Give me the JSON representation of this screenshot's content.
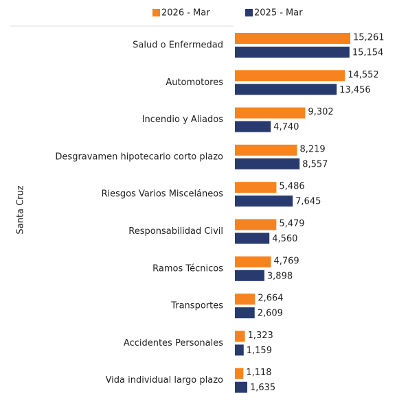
{
  "chart_data": {
    "type": "bar",
    "orientation": "horizontal",
    "y_label": "Santa Cruz",
    "categories": [
      "Salud o Enfermedad",
      "Automotores",
      "Incendio y Aliados",
      "Desgravamen hipotecario corto plazo",
      "Riesgos Varios Misceláneos",
      "Responsabilidad Civil",
      "Ramos Técnicos",
      "Transportes",
      "Accidentes Personales",
      "Vida individual largo plazo"
    ],
    "series": [
      {
        "name": "2026 - Mar",
        "color": "#f7831f",
        "values": [
          15261,
          14552,
          9302,
          8219,
          5486,
          5479,
          4769,
          2664,
          1323,
          1118
        ],
        "value_labels": [
          "15,261",
          "14,552",
          "9,302",
          "8,219",
          "5,486",
          "5,479",
          "4,769",
          "2,664",
          "1,323",
          "1,118"
        ]
      },
      {
        "name": "2025 - Mar",
        "color": "#283a6e",
        "values": [
          15154,
          13456,
          4740,
          8557,
          7645,
          4560,
          3898,
          2609,
          1159,
          1635
        ],
        "value_labels": [
          "15,154",
          "13,456",
          "4,740",
          "8,557",
          "7,645",
          "4,560",
          "3,898",
          "2,609",
          "1,159",
          "1,635"
        ]
      }
    ],
    "legend": "top"
  }
}
